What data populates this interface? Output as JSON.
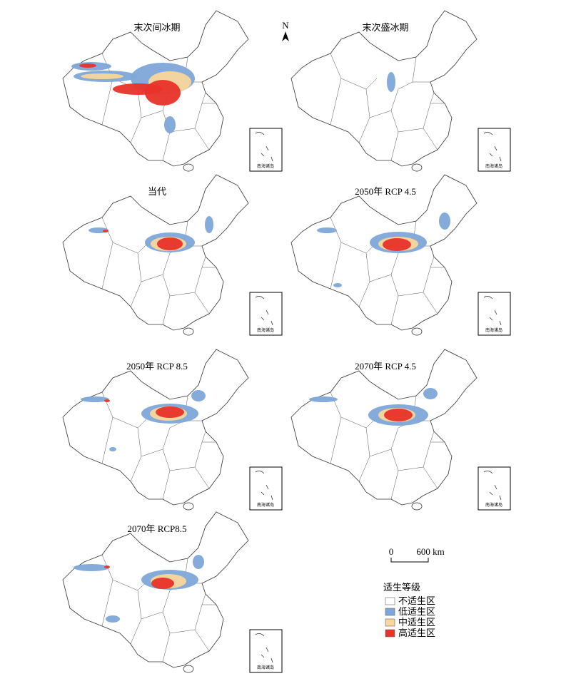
{
  "panels": [
    {
      "title": "末次间冰期"
    },
    {
      "title": "末次盛冰期"
    },
    {
      "title": "当代"
    },
    {
      "title": "2050年 RCP 4.5"
    },
    {
      "title": "2050年 RCP 8.5"
    },
    {
      "title": "2070年 RCP 4.5"
    },
    {
      "title": "2070年 RCP8.5"
    }
  ],
  "inset_label": "南海诸岛",
  "north": "N",
  "scale_bar": {
    "labels": [
      "0",
      "600 km"
    ]
  },
  "legend": {
    "title": "适生等级",
    "items": [
      {
        "label": "不适生区",
        "color": "#ffffff"
      },
      {
        "label": "低适生区",
        "color": "#7ea6d8"
      },
      {
        "label": "中适生区",
        "color": "#f8d69c"
      },
      {
        "label": "高适生区",
        "color": "#e8322a"
      }
    ]
  }
}
